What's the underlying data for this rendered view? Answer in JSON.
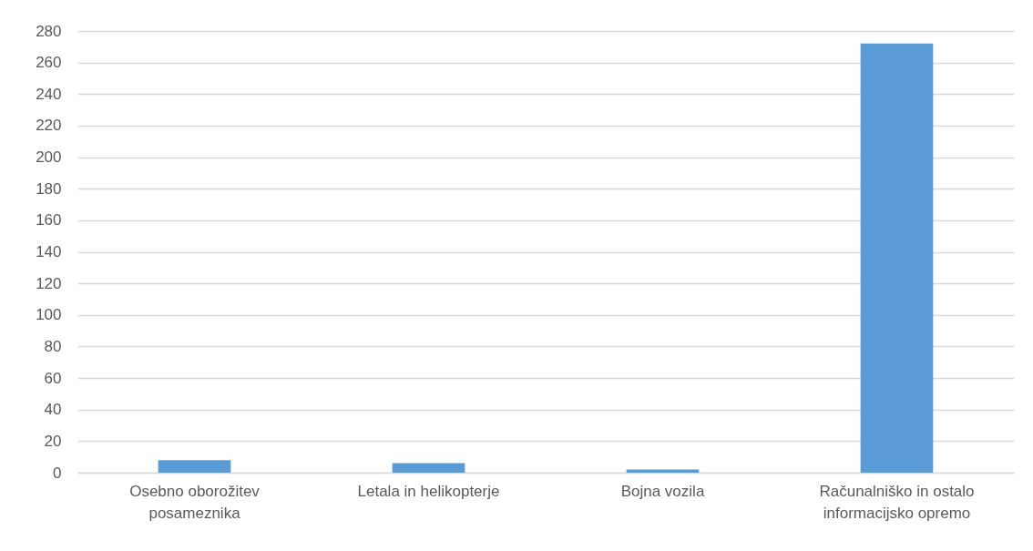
{
  "chart_data": {
    "type": "bar",
    "categories": [
      "Osebno oborožitev posameznika",
      "Letala in helikopterje",
      "Bojna vozila",
      "Računalniško in ostalo informacijsko opremo"
    ],
    "values": [
      8,
      6,
      2,
      272
    ],
    "color": "#5b9bd5",
    "ylim": [
      0,
      280
    ],
    "yticks": [
      0,
      20,
      40,
      60,
      80,
      100,
      120,
      140,
      160,
      180,
      200,
      220,
      240,
      260,
      280
    ],
    "grid": "y"
  }
}
